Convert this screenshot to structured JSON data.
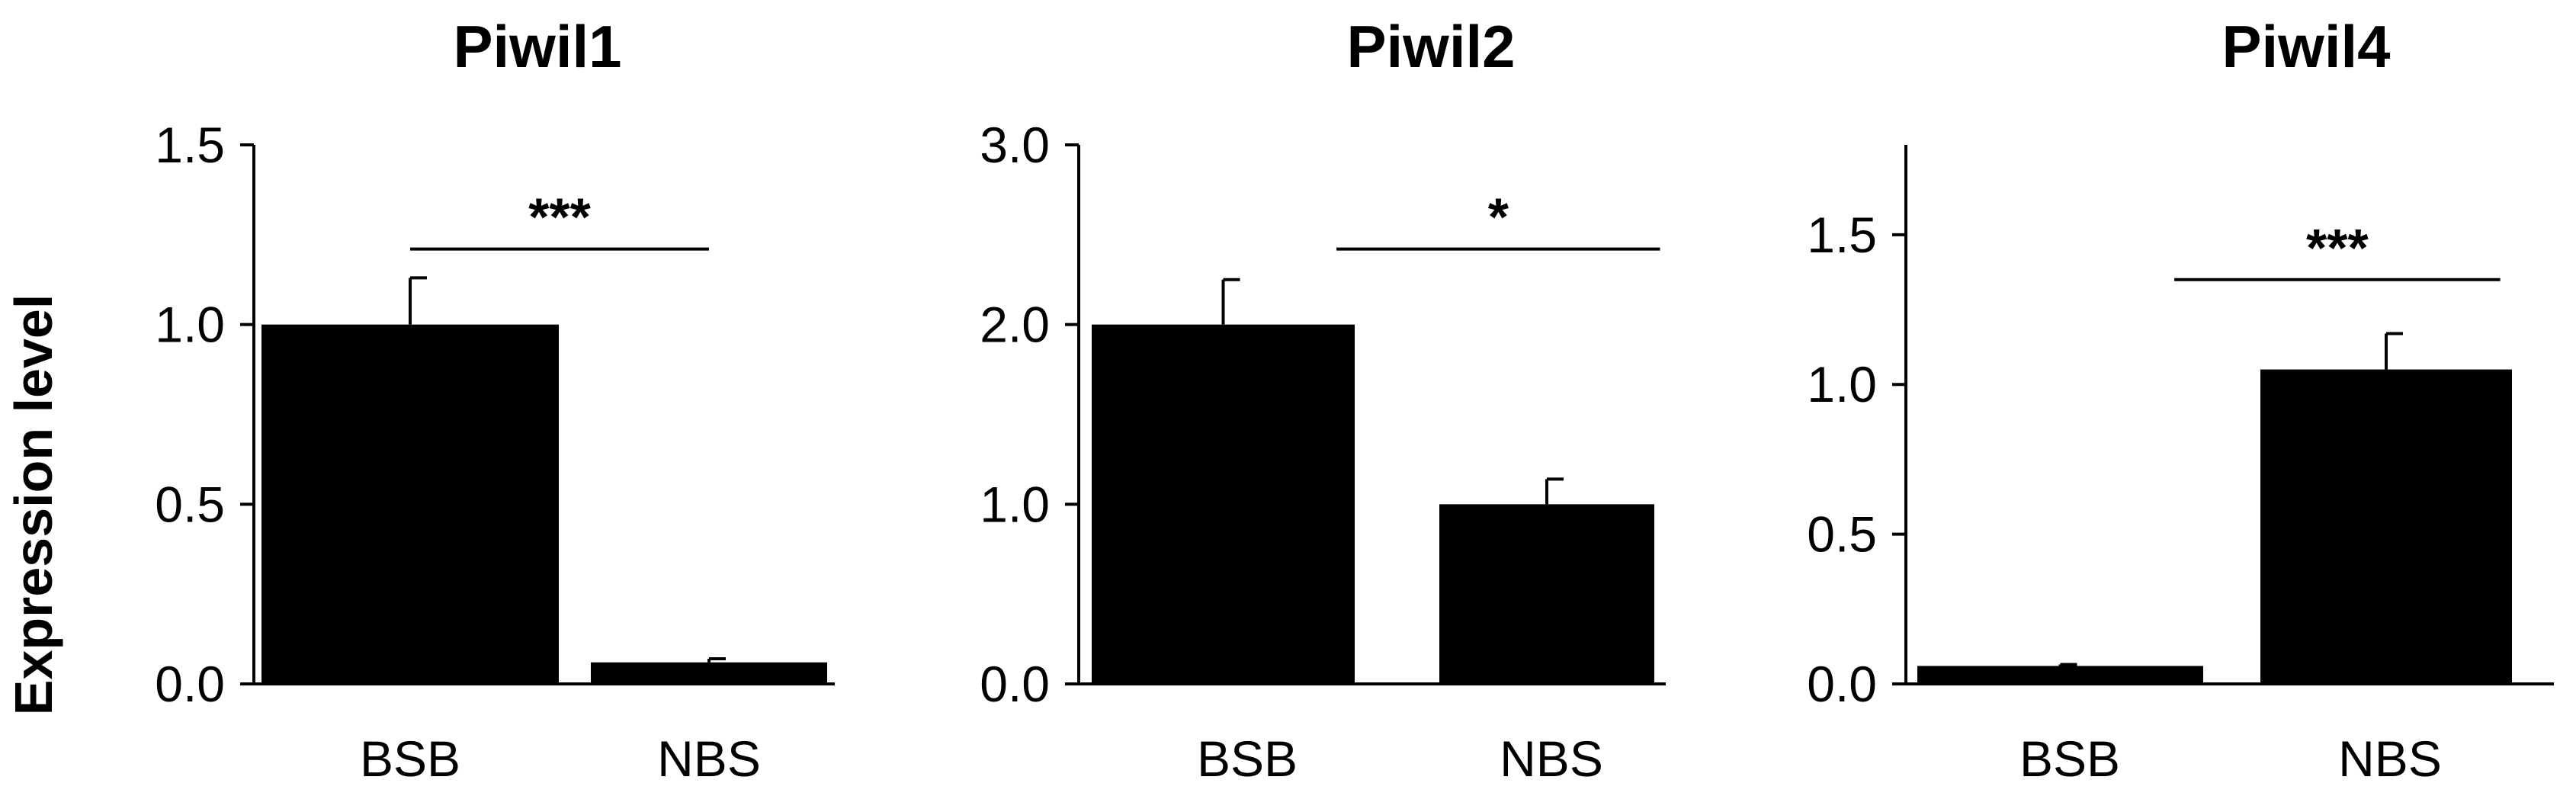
{
  "figure": {
    "ylabel": "Expression level"
  },
  "chart_data": [
    {
      "type": "bar",
      "title": "Piwil1",
      "categories": [
        "BSB",
        "NBS"
      ],
      "values": [
        1.0,
        0.06
      ],
      "errors": [
        0.13,
        0.01
      ],
      "ylim": [
        0,
        1.5
      ],
      "yticks": [
        0.0,
        0.5,
        1.0,
        1.5
      ],
      "ytick_labels": [
        "0.0",
        "0.5",
        "1.0",
        "1.5"
      ],
      "significance": {
        "label": "***",
        "from": 0,
        "to": 1,
        "y": 1.21
      },
      "bar_color": "#000000"
    },
    {
      "type": "bar",
      "title": "Piwil2",
      "categories": [
        "BSB",
        "NBS"
      ],
      "values": [
        2.0,
        1.0
      ],
      "errors": [
        0.25,
        0.14
      ],
      "ylim": [
        0,
        3.0
      ],
      "yticks": [
        0.0,
        1.0,
        2.0,
        3.0
      ],
      "ytick_labels": [
        "0.0",
        "1.0",
        "2.0",
        "3.0"
      ],
      "significance": {
        "label": "*",
        "from": 0.35,
        "to": 1.35,
        "y": 2.42
      },
      "bar_color": "#000000"
    },
    {
      "type": "bar",
      "title": "Piwil4",
      "categories": [
        "BSB",
        "NBS"
      ],
      "values": [
        0.06,
        1.05
      ],
      "errors": [
        0.005,
        0.12
      ],
      "ylim": [
        0,
        1.8
      ],
      "yticks": [
        0.0,
        0.5,
        1.0,
        1.5
      ],
      "ytick_labels": [
        "0.0",
        "0.5",
        "1.0",
        "1.5"
      ],
      "significance": {
        "label": "***",
        "from": 0.35,
        "to": 1.35,
        "y": 1.35
      },
      "bar_color": "#000000"
    }
  ]
}
